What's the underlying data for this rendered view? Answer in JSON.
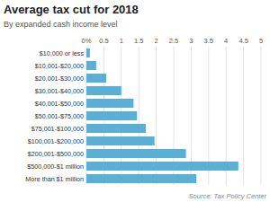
{
  "chart_data": {
    "type": "bar",
    "orientation": "horizontal",
    "title": "Average tax cut for 2018",
    "subtitle": "By expanded cash income level",
    "source": "Source: Tax Policy Center",
    "categories": [
      "$10,000 or less",
      "$10,001-$20,000",
      "$20,001-$30,000",
      "$30,001-$40,000",
      "$40,001-$50,000",
      "$50,001-$75,000",
      "$75,001-$100,000",
      "$100,001-$200,000",
      "$200,001-$500,000",
      "$500,000-$1 million",
      "More than $1 million"
    ],
    "values": [
      0.1,
      0.28,
      0.57,
      1.0,
      1.35,
      1.45,
      1.7,
      1.95,
      2.85,
      4.35,
      3.15
    ],
    "color": "#5bafd4",
    "xlim": [
      0,
      5
    ],
    "xticks": [
      {
        "value": 0,
        "label": "0%"
      },
      0.5,
      1,
      1.5,
      2,
      2.5,
      3,
      3.5,
      4,
      4.5,
      5
    ],
    "grid": true
  }
}
